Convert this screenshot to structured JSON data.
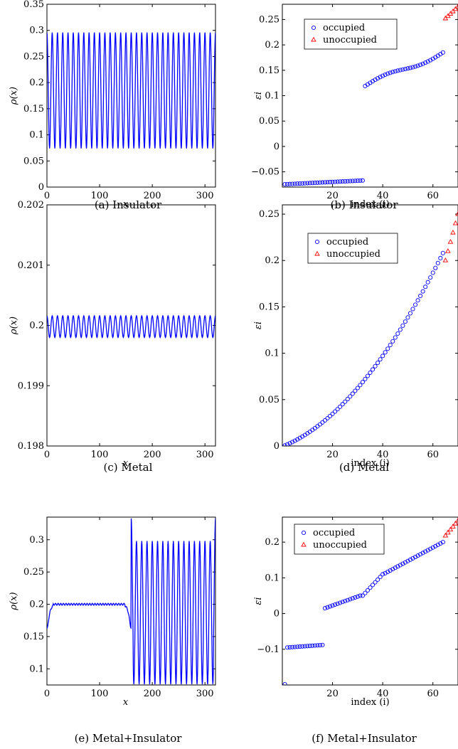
{
  "colors": {
    "series_blue": "#0000ff",
    "series_red": "#ff0000",
    "axis": "#000000"
  },
  "panels": [
    {
      "caption": "(a) Insulator",
      "chart_data": {
        "type": "line",
        "xlabel": "x",
        "ylabel": "ρ(x)",
        "xlim": [
          0,
          320
        ],
        "ylim": [
          0,
          0.35
        ],
        "xticks": [
          {
            "v": 0,
            "label": "0"
          },
          {
            "v": 100,
            "label": "100"
          },
          {
            "v": 200,
            "label": "200"
          },
          {
            "v": 300,
            "label": "300"
          }
        ],
        "yticks": [
          {
            "v": 0,
            "label": "0"
          },
          {
            "v": 0.05,
            "label": "0.05"
          },
          {
            "v": 0.1,
            "label": "0.1"
          },
          {
            "v": 0.15,
            "label": "0.15"
          },
          {
            "v": 0.2,
            "label": "0.2"
          },
          {
            "v": 0.25,
            "label": "0.25"
          },
          {
            "v": 0.3,
            "label": "0.3"
          },
          {
            "v": 0.35,
            "label": "0.35"
          }
        ],
        "series": [
          {
            "function": "oscillation",
            "x_range": [
              0,
              320
            ],
            "mean": 0.185,
            "amplitude": 0.111,
            "period": 10,
            "color": "blue"
          }
        ]
      }
    },
    {
      "caption": "(b) Insulator",
      "chart_data": {
        "type": "scatter",
        "xlabel": "index (i)",
        "ylabel": "εi",
        "xlim": [
          0,
          70
        ],
        "ylim": [
          -0.08,
          0.28
        ],
        "xticks": [
          {
            "v": 20,
            "label": "20"
          },
          {
            "v": 40,
            "label": "40"
          },
          {
            "v": 60,
            "label": "60"
          }
        ],
        "yticks": [
          {
            "v": -0.05,
            "label": "−0.05"
          },
          {
            "v": 0,
            "label": "0"
          },
          {
            "v": 0.05,
            "label": "0.05"
          },
          {
            "v": 0.1,
            "label": "0.1"
          },
          {
            "v": 0.15,
            "label": "0.15"
          },
          {
            "v": 0.2,
            "label": "0.2"
          },
          {
            "v": 0.25,
            "label": "0.25"
          }
        ],
        "legend": {
          "position": "top-left",
          "entries": [
            "occupied",
            "unoccupied"
          ]
        },
        "series": [
          {
            "name": "occupied",
            "marker": "circle",
            "color": "blue",
            "segments": [
              {
                "i": [
                  1,
                  32
                ],
                "y": [
                  -0.0745,
                  -0.067
                ],
                "shape": "linear"
              },
              {
                "i": [
                  33,
                  64
                ],
                "y": [
                  0.119,
                  0.185
                ],
                "shape": "s-curve"
              }
            ]
          },
          {
            "name": "unoccupied",
            "marker": "triangle",
            "color": "red",
            "segments": [
              {
                "i": [
                  65,
                  70
                ],
                "y": [
                  0.252,
                  0.275
                ],
                "shape": "linear"
              }
            ]
          }
        ]
      }
    },
    {
      "caption": "(c) Metal",
      "chart_data": {
        "type": "line",
        "xlabel": "x",
        "ylabel": "ρ(x)",
        "xlim": [
          0,
          320
        ],
        "ylim": [
          0.198,
          0.202
        ],
        "xticks": [
          {
            "v": 0,
            "label": "0"
          },
          {
            "v": 100,
            "label": "100"
          },
          {
            "v": 200,
            "label": "200"
          },
          {
            "v": 300,
            "label": "300"
          }
        ],
        "yticks": [
          {
            "v": 0.198,
            "label": "0.198"
          },
          {
            "v": 0.199,
            "label": "0.199"
          },
          {
            "v": 0.2,
            "label": "0.2"
          },
          {
            "v": 0.201,
            "label": "0.201"
          },
          {
            "v": 0.202,
            "label": "0.202"
          }
        ],
        "series": [
          {
            "function": "oscillation",
            "x_range": [
              0,
              320
            ],
            "mean": 0.19998,
            "amplitude": 0.00018,
            "period": 10,
            "color": "blue"
          }
        ]
      }
    },
    {
      "caption": "(d) Metal",
      "chart_data": {
        "type": "scatter",
        "xlabel": "index (i)",
        "ylabel": "εi",
        "xlim": [
          0,
          70
        ],
        "ylim": [
          0,
          0.26
        ],
        "xticks": [
          {
            "v": 20,
            "label": "20"
          },
          {
            "v": 40,
            "label": "40"
          },
          {
            "v": 60,
            "label": "60"
          }
        ],
        "yticks": [
          {
            "v": 0,
            "label": "0"
          },
          {
            "v": 0.05,
            "label": "0.05"
          },
          {
            "v": 0.1,
            "label": "0.1"
          },
          {
            "v": 0.15,
            "label": "0.15"
          },
          {
            "v": 0.2,
            "label": "0.2"
          },
          {
            "v": 0.25,
            "label": "0.25"
          }
        ],
        "legend": {
          "position": "top-left",
          "entries": [
            "occupied",
            "unoccupied"
          ]
        },
        "series": [
          {
            "name": "occupied",
            "marker": "circle",
            "color": "blue",
            "segments": [
              {
                "i": [
                  1,
                  64
                ],
                "y": [
                  0.0005,
                  0.208
                ],
                "shape": "quadratic"
              }
            ]
          },
          {
            "name": "unoccupied",
            "marker": "triangle",
            "color": "red",
            "segments": [
              {
                "i": [
                  65,
                  70
                ],
                "y": [
                  0.2,
                  0.25
                ],
                "shape": "linear"
              }
            ]
          }
        ]
      }
    },
    {
      "caption": "(e) Metal+Insulator",
      "chart_data": {
        "type": "line",
        "xlabel": "x",
        "ylabel": "ρ(x)",
        "xlim": [
          0,
          320
        ],
        "ylim": [
          0.075,
          0.335
        ],
        "xticks": [
          {
            "v": 0,
            "label": "0"
          },
          {
            "v": 100,
            "label": "100"
          },
          {
            "v": 200,
            "label": "200"
          },
          {
            "v": 300,
            "label": "300"
          }
        ],
        "yticks": [
          {
            "v": 0.1,
            "label": "0.1"
          },
          {
            "v": 0.15,
            "label": "0.15"
          },
          {
            "v": 0.2,
            "label": "0.2"
          },
          {
            "v": 0.25,
            "label": "0.25"
          },
          {
            "v": 0.3,
            "label": "0.3"
          }
        ],
        "series": [
          {
            "function": "metal_insulator",
            "metal_range": [
              0,
              160
            ],
            "metal_mean": 0.2,
            "metal_ripple": 0.0015,
            "insulator_range": [
              160,
              320
            ],
            "insulator_mean": 0.187,
            "insulator_amplitude": 0.111,
            "period": 10,
            "color": "blue"
          }
        ]
      }
    },
    {
      "caption": "(f) Metal+Insulator",
      "chart_data": {
        "type": "scatter",
        "xlabel": "index (i)",
        "ylabel": "εi",
        "xlim": [
          0,
          70
        ],
        "ylim": [
          -0.2,
          0.27
        ],
        "xticks": [
          {
            "v": 20,
            "label": "20"
          },
          {
            "v": 40,
            "label": "40"
          },
          {
            "v": 60,
            "label": "60"
          }
        ],
        "yticks": [
          {
            "v": -0.1,
            "label": "−0.1"
          },
          {
            "v": 0,
            "label": "0"
          },
          {
            "v": 0.1,
            "label": "0.1"
          },
          {
            "v": 0.2,
            "label": "0.2"
          }
        ],
        "legend": {
          "position": "top-left",
          "entries": [
            "occupied",
            "unoccupied"
          ]
        },
        "series": [
          {
            "name": "occupied",
            "marker": "circle",
            "color": "blue",
            "segments": [
              {
                "i": [
                  1,
                  1
                ],
                "y": [
                  -0.198,
                  -0.198
                ],
                "shape": "linear"
              },
              {
                "i": [
                  2,
                  16
                ],
                "y": [
                  -0.095,
                  -0.088
                ],
                "shape": "linear"
              },
              {
                "i": [
                  17,
                  31
                ],
                "y": [
                  0.015,
                  0.05
                ],
                "shape": "linear"
              },
              {
                "i": [
                  32,
                  40
                ],
                "y": [
                  0.05,
                  0.11
                ],
                "shape": "linear"
              },
              {
                "i": [
                  41,
                  64
                ],
                "y": [
                  0.113,
                  0.2
                ],
                "shape": "linear"
              }
            ]
          },
          {
            "name": "unoccupied",
            "marker": "triangle",
            "color": "red",
            "segments": [
              {
                "i": [
                  65,
                  70
                ],
                "y": [
                  0.218,
                  0.26
                ],
                "shape": "linear"
              }
            ]
          }
        ]
      }
    }
  ]
}
